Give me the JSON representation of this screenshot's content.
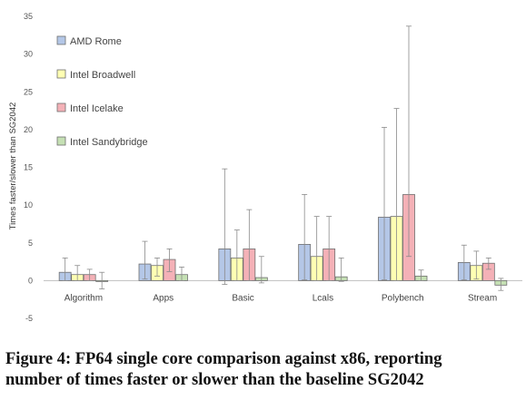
{
  "chart_data": {
    "type": "bar",
    "ylabel": "Times faster/slower than SG2042",
    "ylim": [
      -5,
      35
    ],
    "yticks": [
      -5,
      0,
      5,
      10,
      15,
      20,
      25,
      30,
      35
    ],
    "grid": false,
    "legend_position": "top-left",
    "categories": [
      "Algorithm",
      "Apps",
      "Basic",
      "Lcals",
      "Polybench",
      "Stream"
    ],
    "series": [
      {
        "name": "AMD Rome",
        "color": "#b4c7e7",
        "values": [
          1.1,
          2.2,
          4.2,
          4.8,
          8.4,
          2.4
        ],
        "err_high": [
          3.0,
          5.2,
          14.8,
          11.4,
          20.3,
          4.7
        ],
        "err_low": [
          0.0,
          0.2,
          -0.5,
          0.1,
          0.1,
          0.1
        ]
      },
      {
        "name": "Intel Broadwell",
        "color": "#ffffb3",
        "values": [
          0.8,
          2.0,
          3.0,
          3.2,
          8.5,
          2.0
        ],
        "err_high": [
          2.0,
          3.0,
          6.7,
          8.5,
          22.8,
          3.9
        ],
        "err_low": [
          0.0,
          0.6,
          0.0,
          0.0,
          0.0,
          0.2
        ]
      },
      {
        "name": "Intel Icelake",
        "color": "#f4b1b7",
        "values": [
          0.8,
          2.8,
          4.2,
          4.2,
          11.4,
          2.3
        ],
        "err_high": [
          1.5,
          4.2,
          9.4,
          8.5,
          33.7,
          3.0
        ],
        "err_low": [
          0.0,
          1.2,
          0.0,
          0.0,
          3.2,
          1.5
        ]
      },
      {
        "name": "Intel Sandybridge",
        "color": "#c5e0b4",
        "values": [
          -0.1,
          0.8,
          0.4,
          0.5,
          0.6,
          -0.6
        ],
        "err_high": [
          1.1,
          1.8,
          3.2,
          3.0,
          1.4,
          0.3
        ],
        "err_low": [
          -1.1,
          0.0,
          -0.3,
          -0.1,
          0.0,
          -1.3
        ]
      }
    ]
  },
  "caption": {
    "line1": "Figure 4: FP64 single core comparison against x86, reporting",
    "line2": "number of times faster or slower than the baseline SG2042"
  }
}
